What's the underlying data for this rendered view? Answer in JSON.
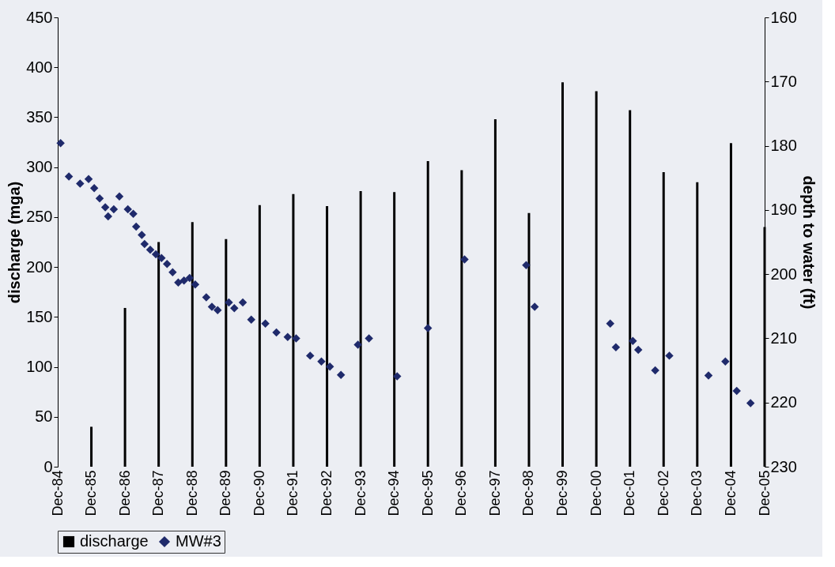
{
  "chart_data": {
    "type": "bar",
    "ylabel": "discharge (mga)",
    "y2label": "depth to water (ft)",
    "xlim": [
      "1984-12",
      "2005-12"
    ],
    "xticks": [
      {
        "value": "1984-12",
        "label": "Dec-84"
      },
      {
        "value": "1985-12",
        "label": "Dec-85"
      },
      {
        "value": "1986-12",
        "label": "Dec-86"
      },
      {
        "value": "1987-12",
        "label": "Dec-87"
      },
      {
        "value": "1988-12",
        "label": "Dec-88"
      },
      {
        "value": "1989-12",
        "label": "Dec-89"
      },
      {
        "value": "1990-12",
        "label": "Dec-90"
      },
      {
        "value": "1991-12",
        "label": "Dec-91"
      },
      {
        "value": "1992-12",
        "label": "Dec-92"
      },
      {
        "value": "1993-12",
        "label": "Dec-93"
      },
      {
        "value": "1994-12",
        "label": "Dec-94"
      },
      {
        "value": "1995-12",
        "label": "Dec-95"
      },
      {
        "value": "1996-12",
        "label": "Dec-96"
      },
      {
        "value": "1997-12",
        "label": "Dec-97"
      },
      {
        "value": "1998-12",
        "label": "Dec-98"
      },
      {
        "value": "1999-12",
        "label": "Dec-99"
      },
      {
        "value": "2000-12",
        "label": "Dec-00"
      },
      {
        "value": "2001-12",
        "label": "Dec-01"
      },
      {
        "value": "2002-12",
        "label": "Dec-02"
      },
      {
        "value": "2003-12",
        "label": "Dec-03"
      },
      {
        "value": "2004-12",
        "label": "Dec-04"
      },
      {
        "value": "2005-12",
        "label": "Dec-05"
      }
    ],
    "ylim": [
      0,
      450
    ],
    "yticks": [
      0,
      50,
      100,
      150,
      200,
      250,
      300,
      350,
      400,
      450
    ],
    "y2lim": [
      230,
      160
    ],
    "y2ticks": [
      160,
      170,
      180,
      190,
      200,
      210,
      220,
      230
    ],
    "legend": "bottom",
    "grid": false,
    "series": [
      {
        "name": "discharge",
        "color": "#000000",
        "x": [
          "1985-12",
          "1986-12",
          "1987-12",
          "1988-12",
          "1989-12",
          "1990-12",
          "1991-12",
          "1992-12",
          "1993-12",
          "1994-12",
          "1995-12",
          "1996-12",
          "1997-12",
          "1998-12",
          "1999-12",
          "2000-12",
          "2001-12",
          "2002-12",
          "2003-12",
          "2004-12",
          "2005-12"
        ],
        "values": [
          40,
          159,
          225,
          245,
          228,
          262,
          273,
          261,
          276,
          275,
          306,
          297,
          348,
          254,
          385,
          376,
          357,
          295,
          285,
          324,
          240
        ]
      },
      {
        "name": "MW#3",
        "type": "scatter",
        "axis": "y2",
        "marker": "diamond",
        "color": "#1f2a6b",
        "x": [
          "1985-01",
          "1985-04",
          "1985-08",
          "1985-11",
          "1986-01",
          "1986-03",
          "1986-05",
          "1986-06",
          "1986-08",
          "1986-10",
          "1987-01",
          "1987-03",
          "1987-04",
          "1987-06",
          "1987-07",
          "1987-09",
          "1987-11",
          "1988-01",
          "1988-03",
          "1988-05",
          "1988-07",
          "1988-09",
          "1988-11",
          "1989-01",
          "1989-05",
          "1989-07",
          "1989-09",
          "1990-01",
          "1990-03",
          "1990-06",
          "1990-09",
          "1991-02",
          "1991-06",
          "1991-10",
          "1992-01",
          "1992-06",
          "1992-10",
          "1993-01",
          "1993-05",
          "1993-11",
          "1994-03",
          "1995-01",
          "1995-12",
          "1997-01",
          "1998-11",
          "1999-02",
          "2001-05",
          "2001-07",
          "2002-01",
          "2002-03",
          "2002-09",
          "2003-02",
          "2004-04",
          "2004-10",
          "2005-02",
          "2005-07"
        ],
        "values": [
          179.6,
          184.8,
          185.9,
          185.2,
          186.6,
          188.2,
          189.6,
          191.0,
          189.9,
          187.9,
          189.9,
          190.6,
          192.6,
          193.9,
          195.3,
          196.2,
          196.9,
          197.5,
          198.4,
          199.7,
          201.3,
          201.0,
          200.6,
          201.6,
          203.6,
          205.1,
          205.6,
          204.4,
          205.3,
          204.4,
          207.1,
          207.7,
          209.1,
          209.8,
          210.0,
          212.7,
          213.6,
          214.4,
          215.7,
          211.0,
          210.0,
          215.9,
          208.4,
          197.7,
          198.6,
          205.1,
          207.7,
          211.4,
          210.4,
          211.8,
          215.0,
          212.7,
          215.8,
          213.6,
          218.2,
          220.1
        ]
      }
    ]
  }
}
